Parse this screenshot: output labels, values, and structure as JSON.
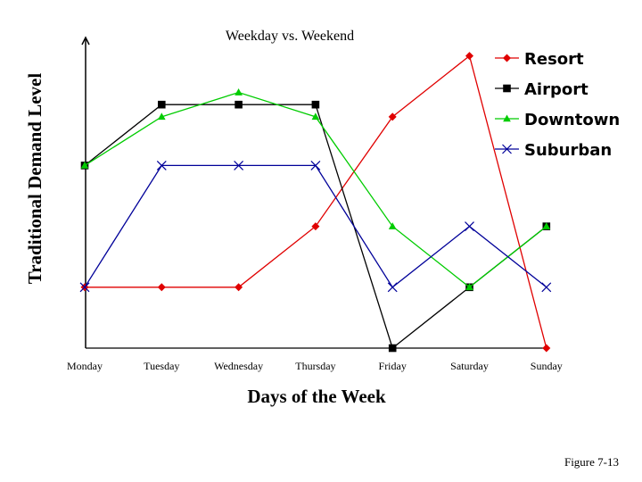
{
  "chart_data": {
    "type": "line",
    "title": "Weekday vs. Weekend",
    "xlabel": "Days of the Week",
    "ylabel": "Traditional Demand Level",
    "categories": [
      "Monday",
      "Tuesday",
      "Wednesday",
      "Thursday",
      "Friday",
      "Saturday",
      "Sunday"
    ],
    "ylim": [
      0,
      5
    ],
    "y_ticks_shown": false,
    "grid": false,
    "legend_position": "top-right",
    "series": [
      {
        "name": "Resort",
        "values": [
          1,
          1,
          1,
          2,
          3.8,
          4.8,
          0
        ],
        "color": "#e00000",
        "marker": "diamond"
      },
      {
        "name": "Airport",
        "values": [
          3,
          4,
          4,
          4,
          0,
          1,
          2
        ],
        "color": "#000000",
        "marker": "square"
      },
      {
        "name": "Downtown",
        "values": [
          3,
          3.8,
          4.2,
          3.8,
          2,
          1,
          2
        ],
        "color": "#00cc00",
        "marker": "triangle"
      },
      {
        "name": "Suburban",
        "values": [
          1,
          3,
          3,
          3,
          1,
          2,
          1
        ],
        "color": "#000099",
        "marker": "x"
      }
    ]
  },
  "caption": "Figure 7-13"
}
